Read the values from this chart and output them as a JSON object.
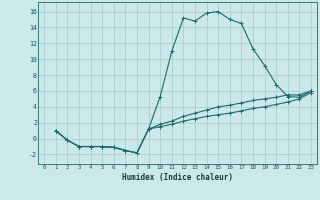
{
  "xlabel": "Humidex (Indice chaleur)",
  "bg_color": "#cce8e8",
  "grid_color": "#aacece",
  "line_color": "#1a6b6b",
  "xlim": [
    -0.5,
    23.5
  ],
  "ylim": [
    -3.2,
    17.2
  ],
  "xticks": [
    0,
    1,
    2,
    3,
    4,
    5,
    6,
    7,
    8,
    9,
    10,
    11,
    12,
    13,
    14,
    15,
    16,
    17,
    18,
    19,
    20,
    21,
    22,
    23
  ],
  "yticks": [
    -2,
    0,
    2,
    4,
    6,
    8,
    10,
    12,
    14,
    16
  ],
  "series": [
    {
      "x": [
        1,
        2,
        3,
        4,
        5,
        6,
        7,
        8,
        9,
        10,
        11,
        12,
        13,
        14,
        15,
        16,
        17,
        18,
        19,
        20,
        21,
        22,
        23
      ],
      "y": [
        1.0,
        -0.2,
        -1.0,
        -1.0,
        -1.0,
        -1.1,
        -1.5,
        -1.8,
        1.2,
        5.3,
        11.0,
        15.2,
        14.8,
        15.8,
        16.0,
        15.0,
        14.5,
        11.3,
        9.2,
        6.8,
        5.3,
        5.2,
        6.0
      ]
    },
    {
      "x": [
        1,
        2,
        3,
        4,
        5,
        6,
        7,
        8,
        9,
        10,
        11,
        12,
        13,
        14,
        15,
        16,
        17,
        18,
        19,
        20,
        21,
        22,
        23
      ],
      "y": [
        1.0,
        -0.2,
        -1.0,
        -1.0,
        -1.0,
        -1.1,
        -1.5,
        -1.8,
        1.2,
        1.8,
        2.2,
        2.8,
        3.2,
        3.6,
        4.0,
        4.2,
        4.5,
        4.8,
        5.0,
        5.2,
        5.5,
        5.5,
        6.0
      ]
    },
    {
      "x": [
        1,
        2,
        3,
        4,
        5,
        6,
        7,
        8,
        9,
        10,
        11,
        12,
        13,
        14,
        15,
        16,
        17,
        18,
        19,
        20,
        21,
        22,
        23
      ],
      "y": [
        1.0,
        -0.2,
        -1.0,
        -1.0,
        -1.0,
        -1.1,
        -1.5,
        -1.8,
        1.2,
        1.5,
        1.8,
        2.2,
        2.5,
        2.8,
        3.0,
        3.2,
        3.5,
        3.8,
        4.0,
        4.3,
        4.6,
        5.0,
        5.8
      ]
    }
  ]
}
